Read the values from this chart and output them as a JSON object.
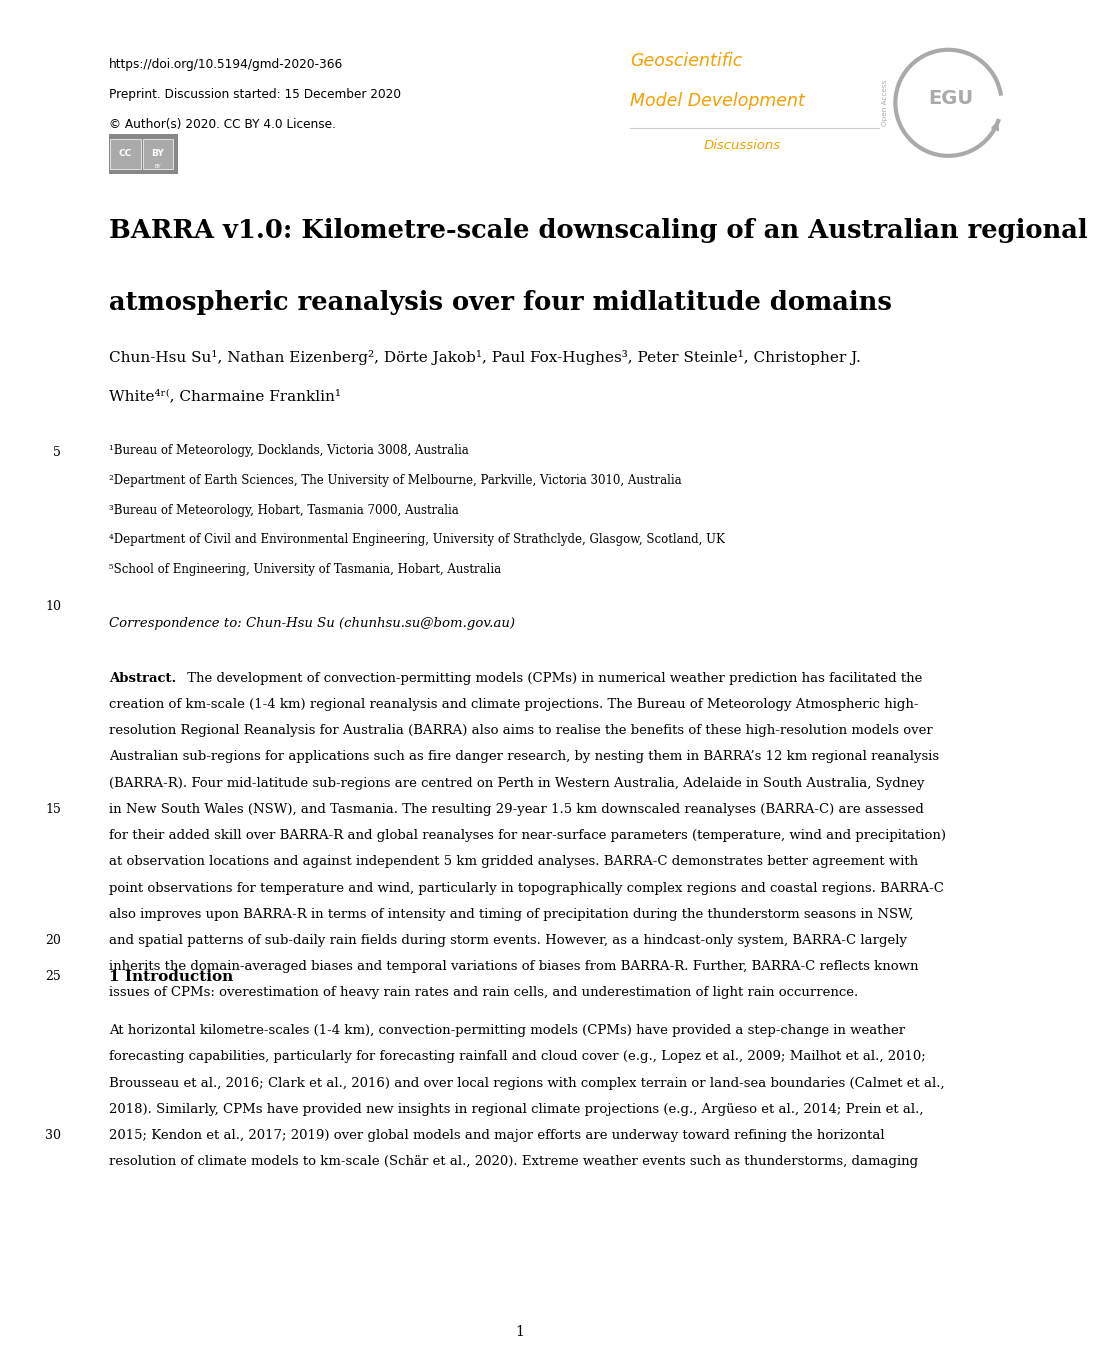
{
  "doi_line": "https://doi.org/10.5194/gmd-2020-366",
  "preprint_line": "Preprint. Discussion started: 15 December 2020",
  "copyright_line": "© Author(s) 2020. CC BY 4.0 License.",
  "journal_line1": "Geoscientific",
  "journal_line2": "Model Development",
  "journal_line3": "Discussions",
  "journal_color": "#f5a000",
  "egu_color": "#aaaaaa",
  "title_line1": "BARRA v1.0: Kilometre-scale downscaling of an Australian regional",
  "title_line2": "atmospheric reanalysis over four midlatitude domains",
  "author_line1": "Chun-Hsu Su¹, Nathan Eizenberg², Dörte Jakob¹, Paul Fox-Hughes³, Peter Steinle¹, Christopher J.",
  "author_line2": "White⁴ʳ⁽, Charmaine Franklin¹",
  "affil1": "¹Bureau of Meteorology, Docklands, Victoria 3008, Australia",
  "affil2": "²Department of Earth Sciences, The University of Melbourne, Parkville, Victoria 3010, Australia",
  "affil3": "³Bureau of Meteorology, Hobart, Tasmania 7000, Australia",
  "affil4": "⁴Department of Civil and Environmental Engineering, University of Strathclyde, Glasgow, Scotland, UK",
  "affil5": "⁵School of Engineering, University of Tasmania, Hobart, Australia",
  "correspondence": "Correspondence to: Chun-Hsu Su (chunhsu.su@bom.gov.au)",
  "abstract_lines": [
    "Abstract. The development of convection-permitting models (CPMs) in numerical weather prediction has facilitated the",
    "creation of km-scale (1-4 km) regional reanalysis and climate projections. The Bureau of Meteorology Atmospheric high-",
    "resolution Regional Reanalysis for Australia (BARRA) also aims to realise the benefits of these high-resolution models over",
    "Australian sub-regions for applications such as fire danger research, by nesting them in BARRA’s 12 km regional reanalysis",
    "(BARRA-R). Four mid-latitude sub-regions are centred on Perth in Western Australia, Adelaide in South Australia, Sydney",
    "in New South Wales (NSW), and Tasmania. The resulting 29-year 1.5 km downscaled reanalyses (BARRA-C) are assessed",
    "for their added skill over BARRA-R and global reanalyses for near-surface parameters (temperature, wind and precipitation)",
    "at observation locations and against independent 5 km gridded analyses. BARRA-C demonstrates better agreement with",
    "point observations for temperature and wind, particularly in topographically complex regions and coastal regions. BARRA-C",
    "also improves upon BARRA-R in terms of intensity and timing of precipitation during the thunderstorm seasons in NSW,",
    "and spatial patterns of sub-daily rain fields during storm events. However, as a hindcast-only system, BARRA-C largely",
    "inherits the domain-averaged biases and temporal variations of biases from BARRA-R. Further, BARRA-C reflects known",
    "issues of CPMs: overestimation of heavy rain rates and rain cells, and underestimation of light rain occurrence."
  ],
  "intro_heading": "1 Introduction",
  "intro_lines": [
    "At horizontal kilometre-scales (1-4 km), convection-permitting models (CPMs) have provided a step-change in weather",
    "forecasting capabilities, particularly for forecasting rainfall and cloud cover (e.g., Lopez et al., 2009; Mailhot et al., 2010;",
    "Brousseau et al., 2016; Clark et al., 2016) and over local regions with complex terrain or land-sea boundaries (Calmet et al.,",
    "2018). Similarly, CPMs have provided new insights in regional climate projections (e.g., Argüeso et al., 2014; Prein et al.,",
    "2015; Kendon et al., 2017; 2019) over global models and major efforts are underway toward refining the horizontal",
    "resolution of climate models to km-scale (Schär et al., 2020). Extreme weather events such as thunderstorms, damaging"
  ],
  "bg_color": "#ffffff",
  "text_color": "#000000",
  "lm": 0.097,
  "rm": 0.97,
  "lnx": 0.05
}
